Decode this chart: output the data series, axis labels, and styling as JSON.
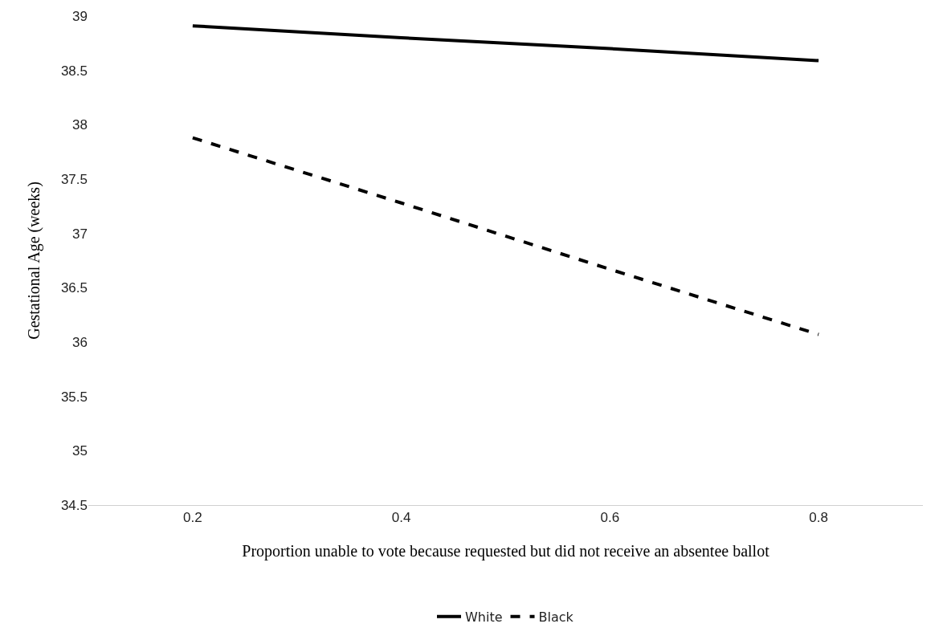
{
  "chart_data": {
    "type": "line",
    "xlabel": "Proportion unable to vote because requested but did not receive an absentee ballot",
    "ylabel": "Gestational Age (weeks)",
    "categories": [
      "0.2",
      "0.4",
      "0.6",
      "0.8"
    ],
    "ylim": [
      34.5,
      39
    ],
    "yticks": [
      34.5,
      35,
      35.5,
      36,
      36.5,
      37,
      37.5,
      38,
      38.5,
      39
    ],
    "grid": false,
    "legend": "bottom",
    "marker": "none",
    "series": [
      {
        "name": "White",
        "color": "#000000",
        "line_style": "solid",
        "values": [
          38.91,
          38.8,
          38.7,
          38.59
        ]
      },
      {
        "name": "Black",
        "color": "#000000",
        "line_style": "dashed",
        "values": [
          37.88,
          37.28,
          36.67,
          36.07
        ]
      }
    ]
  }
}
